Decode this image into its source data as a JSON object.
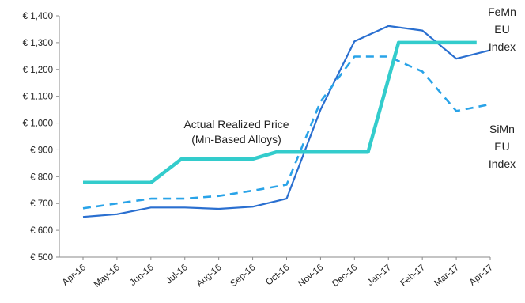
{
  "chart_data": {
    "type": "line",
    "title": "",
    "xlabel": "",
    "ylabel": "",
    "categories": [
      "Apr-16",
      "May-16",
      "Jun-16",
      "Jul-16",
      "Aug-16",
      "Sep-16",
      "Oct-16",
      "Nov-16",
      "Dec-16",
      "Jan-17",
      "Feb-17",
      "Mar-17",
      "Apr-17"
    ],
    "y_tick_labels": [
      "€ 500",
      "€ 600",
      "€ 700",
      "€ 800",
      "€ 900",
      "€ 1,000",
      "€ 1,100",
      "€ 1,200",
      "€ 1,300",
      "€ 1,400"
    ],
    "ylim": [
      500,
      1400
    ],
    "grid": false,
    "legend": "none",
    "series": [
      {
        "key": "femn",
        "name_lines": [
          "FeMn",
          "EU",
          "Index"
        ],
        "color": "#2a6fd0",
        "style": "solid",
        "values": [
          650,
          660,
          685,
          685,
          680,
          688,
          718,
          1050,
          1305,
          1362,
          1345,
          1240,
          1272
        ]
      },
      {
        "key": "simn",
        "name_lines": [
          "SiMn",
          "EU",
          "Index"
        ],
        "color": "#29a3e8",
        "style": "dashed",
        "values": [
          682,
          700,
          718,
          718,
          728,
          748,
          770,
          1080,
          1248,
          1248,
          1192,
          1045,
          1070
        ]
      },
      {
        "key": "realized",
        "name_lines": [
          "Actual Realized Price",
          "(Mn-Based Alloys)"
        ],
        "color": "#33cccc",
        "style": "solid-thick",
        "x_start": 0,
        "x_end": 11.6,
        "points": [
          [
            0,
            778
          ],
          [
            2,
            778
          ],
          [
            2.9,
            866
          ],
          [
            5,
            866
          ],
          [
            5.7,
            892
          ],
          [
            8.4,
            892
          ],
          [
            9.3,
            1300
          ],
          [
            11.6,
            1300
          ]
        ]
      }
    ]
  }
}
